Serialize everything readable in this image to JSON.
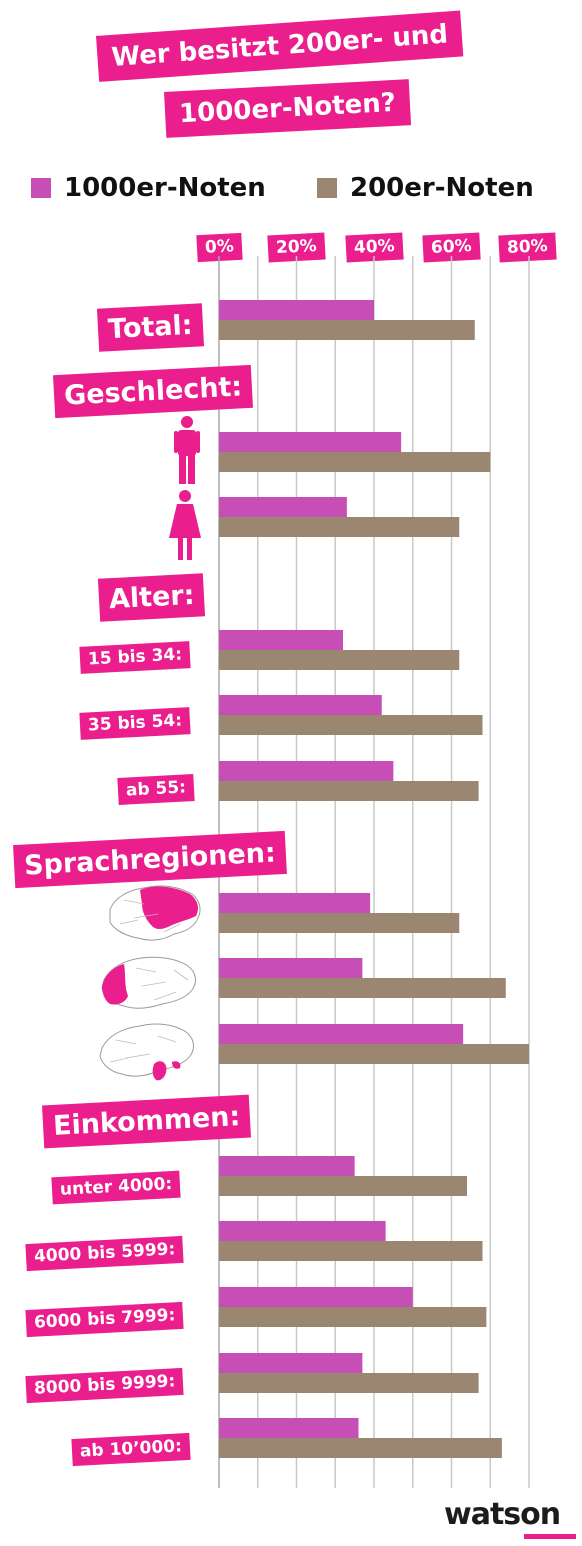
{
  "title": {
    "line1": "Wer besitzt 200er- und",
    "line2": "1000er-Noten?"
  },
  "legend": [
    {
      "label": "1000er-Noten",
      "color": "#c64eb5"
    },
    {
      "label": "200er-Noten",
      "color": "#9b8672"
    }
  ],
  "sections": {
    "total": "Total:",
    "geschlecht": "Geschlecht:",
    "alter": "Alter:",
    "sprachregionen": "Sprachregionen:",
    "einkommen": "Einkommen:"
  },
  "rows": {
    "alter_15_34": "15 bis 34:",
    "alter_35_54": "35 bis 54:",
    "alter_ab55": "ab 55:",
    "eink_1": "unter 4000:",
    "eink_2": "4000 bis 5999:",
    "eink_3": "6000 bis 7999:",
    "eink_4": "8000 bis 9999:",
    "eink_5": "ab 10’000:"
  },
  "icons": {
    "male": "male-person-icon",
    "female": "female-person-icon",
    "region_de": "map-swiss-german-region-icon",
    "region_fr": "map-french-region-icon",
    "region_it": "map-italian-region-icon"
  },
  "colors": {
    "accent": "#ea1e8c",
    "bar_1000": "#c64eb5",
    "bar_200": "#9b8672",
    "grid": "#c8c8c8"
  },
  "brand": "watson",
  "chart_data": {
    "type": "bar",
    "orientation": "horizontal",
    "categories": [
      "Total",
      "Männer",
      "Frauen",
      "15 bis 34",
      "35 bis 54",
      "ab 55",
      "Deutschschweiz",
      "Westschweiz",
      "Italienische Schweiz",
      "unter 4000",
      "4000 bis 5999",
      "6000 bis 7999",
      "8000 bis 9999",
      "ab 10'000"
    ],
    "series": [
      {
        "name": "1000er-Noten",
        "values": [
          40,
          47,
          33,
          32,
          42,
          45,
          39,
          37,
          63,
          35,
          43,
          50,
          37,
          36
        ]
      },
      {
        "name": "200er-Noten",
        "values": [
          66,
          70,
          62,
          62,
          68,
          67,
          62,
          74,
          80,
          64,
          68,
          69,
          67,
          73
        ]
      }
    ],
    "x_ticks": [
      "0%",
      "20%",
      "40%",
      "60%",
      "80%"
    ],
    "xlim": [
      0,
      80
    ],
    "grid": true,
    "legend": "top"
  }
}
